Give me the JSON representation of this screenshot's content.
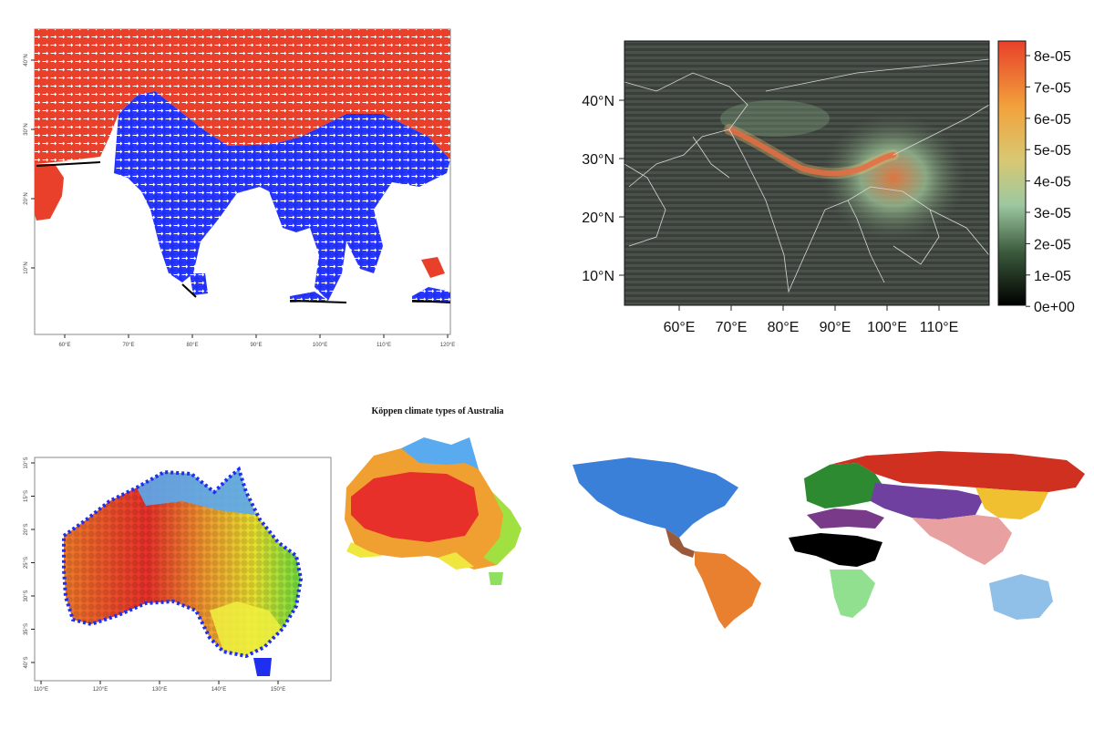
{
  "panel_a": {
    "x_ticks": [
      "60°E",
      "70°E",
      "80°E",
      "90°E",
      "100°E",
      "110°E",
      "120°E"
    ],
    "y_ticks": [
      "40°N",
      "30°N",
      "20°N",
      "10°N"
    ],
    "colors": {
      "north": "#e8402a",
      "south": "#1f2ff0",
      "arrow": "#ffffff",
      "coast": "#000000"
    }
  },
  "panel_b": {
    "x_ticks": [
      "60°E",
      "70°E",
      "80°E",
      "90°E",
      "100°E",
      "110°E"
    ],
    "y_ticks": [
      "40°N",
      "30°N",
      "20°N",
      "10°N"
    ],
    "colorbar_ticks": [
      "8e-05",
      "7e-05",
      "6e-05",
      "5e-05",
      "4e-05",
      "3e-05",
      "2e-05",
      "1e-05",
      "0e+00"
    ],
    "colorbar_range": [
      0,
      8.5e-05
    ],
    "colorbar_colors": [
      "#000000",
      "#3b5a3c",
      "#9cc8a0",
      "#d8c872",
      "#f2a23c",
      "#e8402a"
    ]
  },
  "panel_c": {
    "title": "Köppen climate types of Australia",
    "x_ticks": [
      "110°E",
      "120°E",
      "130°E",
      "140°E",
      "150°E"
    ],
    "y_ticks": [
      "10°S",
      "15°S",
      "20°S",
      "25°S",
      "30°S",
      "35°S",
      "40°S"
    ],
    "colors": {
      "tropical": "#5aaaf0",
      "hot_desert": "#e8302a",
      "semi_arid": "#f0a030",
      "temperate": "#a0e040",
      "mediterranean": "#f0e640",
      "coast": "#1f2ff0"
    }
  },
  "panel_d": {
    "regions": [
      {
        "name": "north-america",
        "color": "#3a7fd8"
      },
      {
        "name": "central-america",
        "color": "#9a5a3a"
      },
      {
        "name": "south-america",
        "color": "#e88030"
      },
      {
        "name": "europe",
        "color": "#2e8a30"
      },
      {
        "name": "north-asia",
        "color": "#d03020"
      },
      {
        "name": "central-asia",
        "color": "#7040a0"
      },
      {
        "name": "east-asia",
        "color": "#f0c030"
      },
      {
        "name": "south-asia",
        "color": "#e8a0a0"
      },
      {
        "name": "north-africa",
        "color": "#7a3a8a"
      },
      {
        "name": "central-africa",
        "color": "#000000"
      },
      {
        "name": "southern-africa",
        "color": "#90e090"
      },
      {
        "name": "oceania",
        "color": "#90c0e8"
      }
    ]
  }
}
